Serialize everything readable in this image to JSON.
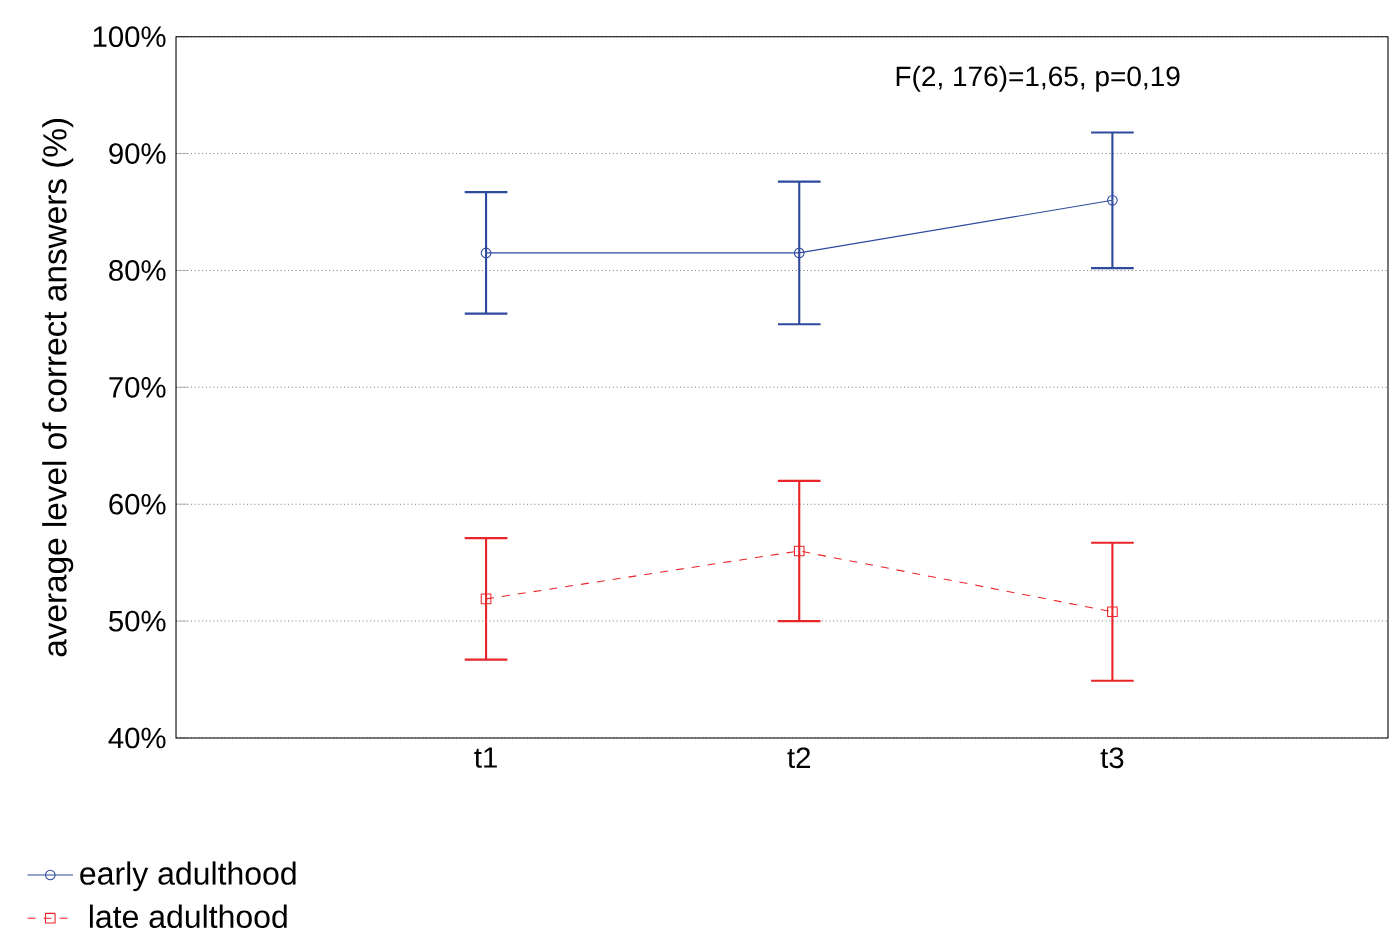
{
  "chart_data": {
    "type": "line",
    "ylabel": "average level of correct answers (%)",
    "categories": [
      "t1",
      "t2",
      "t3"
    ],
    "series": [
      {
        "name": "early adulthood",
        "color": "#2e4a9e",
        "marker": "circle",
        "line_style": "solid",
        "values": [
          81.5,
          81.5,
          86.0
        ],
        "errors": [
          5.2,
          6.1,
          5.8
        ]
      },
      {
        "name": "late adulthood",
        "color": "#e8252a",
        "marker": "square",
        "line_style": "dashed",
        "values": [
          51.9,
          56.0,
          50.8
        ],
        "errors": [
          5.2,
          6.0,
          5.9
        ]
      }
    ],
    "ylim": [
      40,
      100
    ],
    "yticks": [
      {
        "value": 40,
        "label": "40%"
      },
      {
        "value": 50,
        "label": "50%"
      },
      {
        "value": 60,
        "label": "60%"
      },
      {
        "value": 70,
        "label": "70%"
      },
      {
        "value": 80,
        "label": "80%"
      },
      {
        "value": 90,
        "label": "90%"
      },
      {
        "value": 100,
        "label": "100%"
      }
    ],
    "grid": "y",
    "legend": "bottom left",
    "annotations": [
      "F(2, 176)=1,65, p=0,19"
    ]
  }
}
